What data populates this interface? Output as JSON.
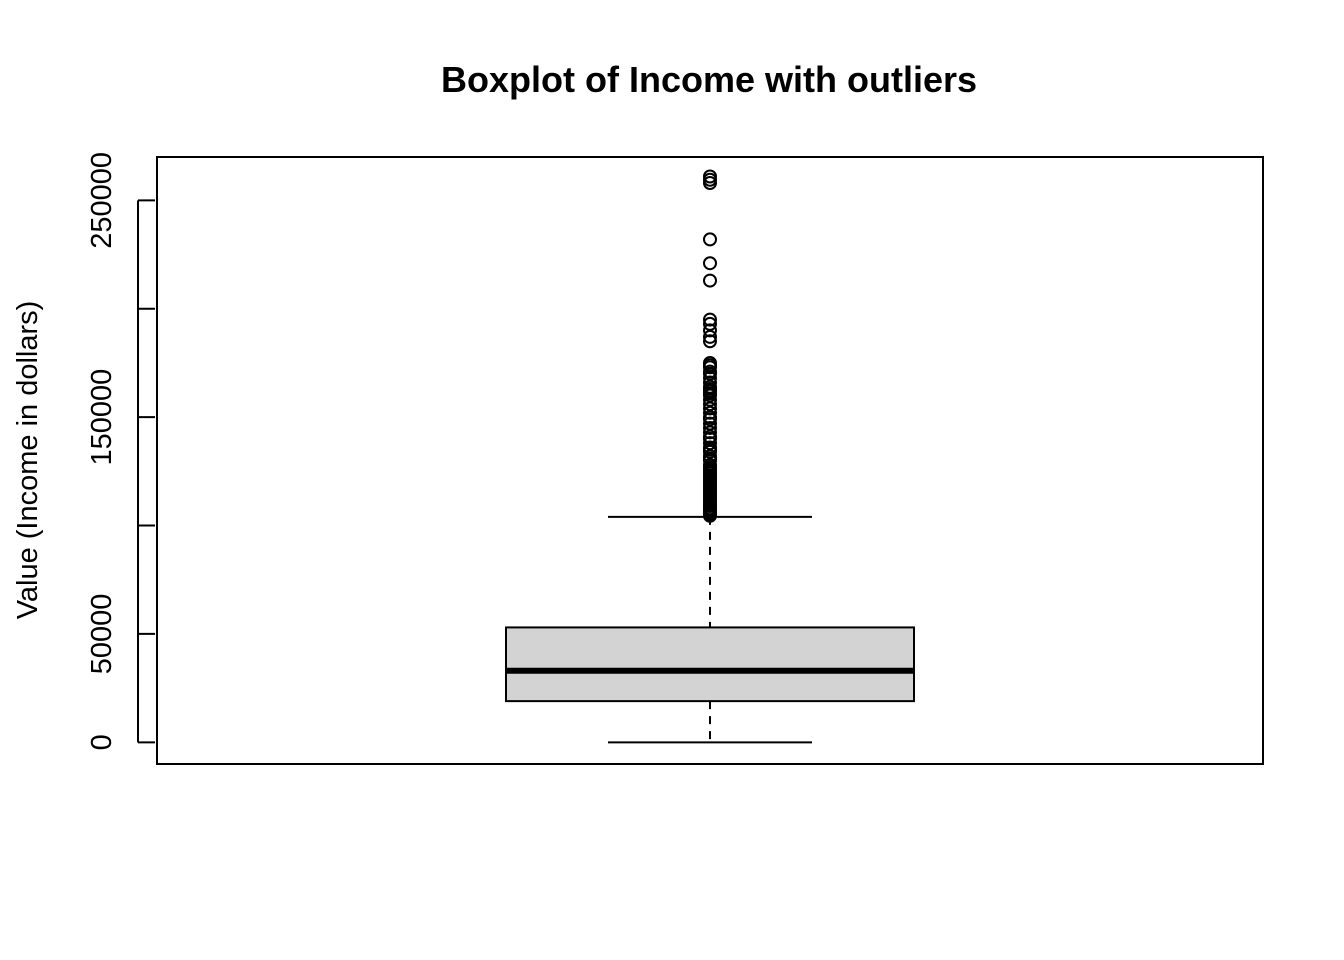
{
  "chart_data": {
    "type": "boxplot",
    "title": "Boxplot of Income with outliers",
    "ylabel": "Value (Income in dollars)",
    "xlabel": "",
    "ylim": [
      -10000,
      270000
    ],
    "yticks": [
      0,
      50000,
      100000,
      150000,
      200000,
      250000
    ],
    "ytick_labels": [
      "0",
      "50000",
      "",
      "150000",
      "",
      "250000"
    ],
    "box": {
      "min": 0,
      "q1": 19000,
      "median": 33000,
      "q3": 53000,
      "whisker_high": 104000,
      "fill": "#d3d3d3"
    },
    "outliers": [
      104500,
      105000,
      105500,
      106000,
      106500,
      107000,
      107500,
      108000,
      109000,
      110000,
      111000,
      112000,
      113000,
      114000,
      115000,
      116000,
      117000,
      118000,
      119000,
      120000,
      121000,
      122000,
      123000,
      124000,
      125000,
      126000,
      127000,
      128000,
      130000,
      131000,
      132000,
      134000,
      135000,
      136000,
      138000,
      140000,
      141000,
      143000,
      145000,
      147000,
      149000,
      150000,
      152000,
      154000,
      156000,
      158000,
      160000,
      161000,
      162000,
      163000,
      164000,
      166000,
      168000,
      170000,
      171000,
      173000,
      174000,
      175000,
      185000,
      187000,
      190000,
      193000,
      195000,
      213000,
      221000,
      232000,
      258000,
      259500,
      261000
    ],
    "grid": false,
    "legend": "none"
  }
}
